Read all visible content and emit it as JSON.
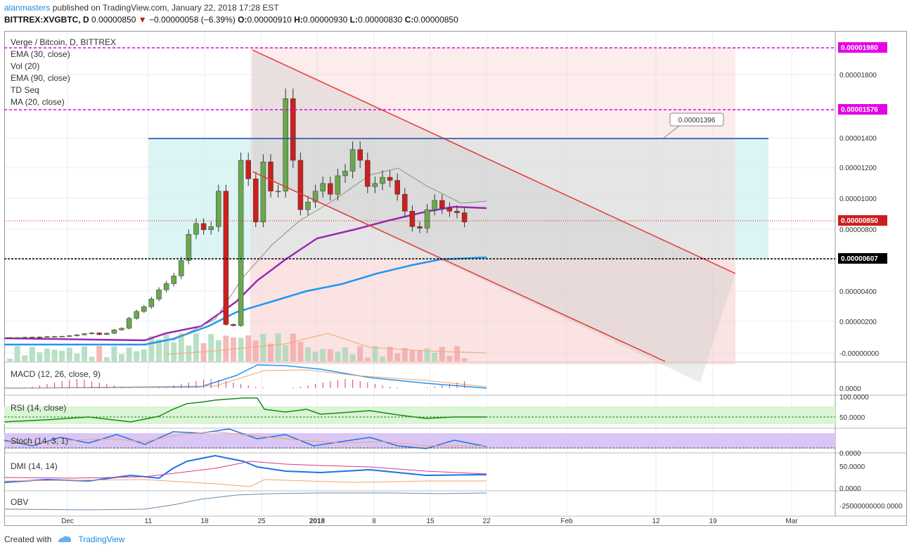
{
  "header": {
    "user": "alanmasters",
    "published_text": "published on TradingView.com, January 22, 2018 17:28 EST",
    "symbol": "BITTREX:XVGBTC, D",
    "last": "0.00000850",
    "change": "−0.00000058 (−6.39%)",
    "o_label": "O:",
    "o": "0.00000910",
    "h_label": "H:",
    "h": "0.00000930",
    "l_label": "L:",
    "l": "0.00000830",
    "c_label": "C:",
    "c": "0.00000850"
  },
  "legend": [
    "Verge / Bitcoin, D, BITTREX",
    "EMA (30, close)",
    "Vol (20)",
    "EMA (90, close)",
    "TD Seq",
    "MA (20, close)"
  ],
  "footer": {
    "created_with": "Created with",
    "brand": "TradingView"
  },
  "colors": {
    "up": "#6aa84f",
    "down": "#cc1f1f",
    "ema30": "#8c8c8c",
    "ema90": "#2196f3",
    "ma20": "#9c27b0",
    "channel": "#e53935",
    "magenta": "#e600e6"
  },
  "chart_data": [
    {
      "type": "candlestick",
      "name": "Verge / Bitcoin, D, BITTREX",
      "x_labels": [
        "Dec",
        "11",
        "18",
        "25",
        "2018",
        "8",
        "15",
        "22",
        "Feb",
        "12",
        "19",
        "Mar"
      ],
      "y_ticks": [
        "0.00001800",
        "0.00001400",
        "0.00001200",
        "0.00001000",
        "0.00000800",
        "0.00000400",
        "0.00000200",
        "-0.00000000"
      ],
      "price_labels": [
        {
          "value": "0.00001980",
          "color": "#e600e6"
        },
        {
          "value": "0.00001576",
          "color": "#e600e6"
        },
        {
          "value": "0.00000850",
          "color": "#cc1f1f"
        },
        {
          "value": "0.00000607",
          "color": "#000000"
        }
      ],
      "callout": "0.00001396",
      "candles_o": [
        9.8e-07,
        1e-06,
        1e-06,
        1.02e-06,
        1.03e-06,
        1.04e-06,
        1.06e-06,
        1.07e-06,
        1.08e-06,
        1.12e-06,
        1.18e-06,
        1.25e-06,
        1.3e-06,
        1.2e-06,
        1.28e-06,
        1.5e-06,
        1.6e-06,
        2.25e-06,
        2.7e-06,
        3e-06,
        3.5e-06,
        4.1e-06,
        4.5e-06,
        5e-06,
        6e-06,
        7.7e-06,
        8.4e-06,
        8e-06,
        8.2e-06,
        1.05e-05,
        1.85e-06,
        1.78e-06,
        1.25e-05,
        1.13e-05,
        8.5e-06,
        1.24e-05,
        1.05e-05,
        1.05e-05,
        1.65e-05,
        1.25e-05,
        9.3e-06,
        9.8e-06,
        1.05e-05,
        1.1e-05,
        1.03e-05,
        1.15e-05,
        1.18e-05,
        1.32e-05,
        1.25e-05,
        1.08e-05,
        1.1e-05,
        1.14e-05,
        1.12e-05,
        1.03e-05,
        9.2e-06,
        8.2e-06,
        8.1e-06,
        9.3e-06,
        9.9e-06,
        9.4e-06,
        9.2e-06,
        9.1e-06
      ],
      "candles_c": [
        1e-06,
        1e-06,
        1.02e-06,
        1.03e-06,
        1.04e-06,
        1.06e-06,
        1.07e-06,
        1.08e-06,
        1.12e-06,
        1.18e-06,
        1.25e-06,
        1.3e-06,
        1.2e-06,
        1.28e-06,
        1.5e-06,
        1.6e-06,
        2.25e-06,
        2.7e-06,
        3e-06,
        3.5e-06,
        4.1e-06,
        4.5e-06,
        5e-06,
        6e-06,
        7.7e-06,
        8.4e-06,
        8e-06,
        8.2e-06,
        1.05e-05,
        1.85e-06,
        1.78e-06,
        1.25e-05,
        1.13e-05,
        8.5e-06,
        1.24e-05,
        1.05e-05,
        1.05e-05,
        1.65e-05,
        1.25e-05,
        9.3e-06,
        9.8e-06,
        1.05e-05,
        1.1e-05,
        1.03e-05,
        1.15e-05,
        1.18e-05,
        1.32e-05,
        1.25e-05,
        1.08e-05,
        1.1e-05,
        1.14e-05,
        1.12e-05,
        1.03e-05,
        9.2e-06,
        8.2e-06,
        8.1e-06,
        9.3e-06,
        9.9e-06,
        9.4e-06,
        9.2e-06,
        9.1e-06,
        8.5e-06
      ]
    },
    {
      "type": "line",
      "name": "MACD (12, 26, close, 9)",
      "y_ticks": [
        "0.0000"
      ]
    },
    {
      "type": "line",
      "name": "RSI (14, close)",
      "y_ticks": [
        "100.0000",
        "50.0000"
      ]
    },
    {
      "type": "line",
      "name": "Stoch (14, 3, 1)",
      "y_ticks": [
        "0.0000"
      ]
    },
    {
      "type": "line",
      "name": "DMI (14, 14)",
      "y_ticks": [
        "50.0000",
        "0.0000"
      ]
    },
    {
      "type": "line",
      "name": "OBV",
      "y_ticks": [
        "-25000000000.0000"
      ]
    }
  ]
}
